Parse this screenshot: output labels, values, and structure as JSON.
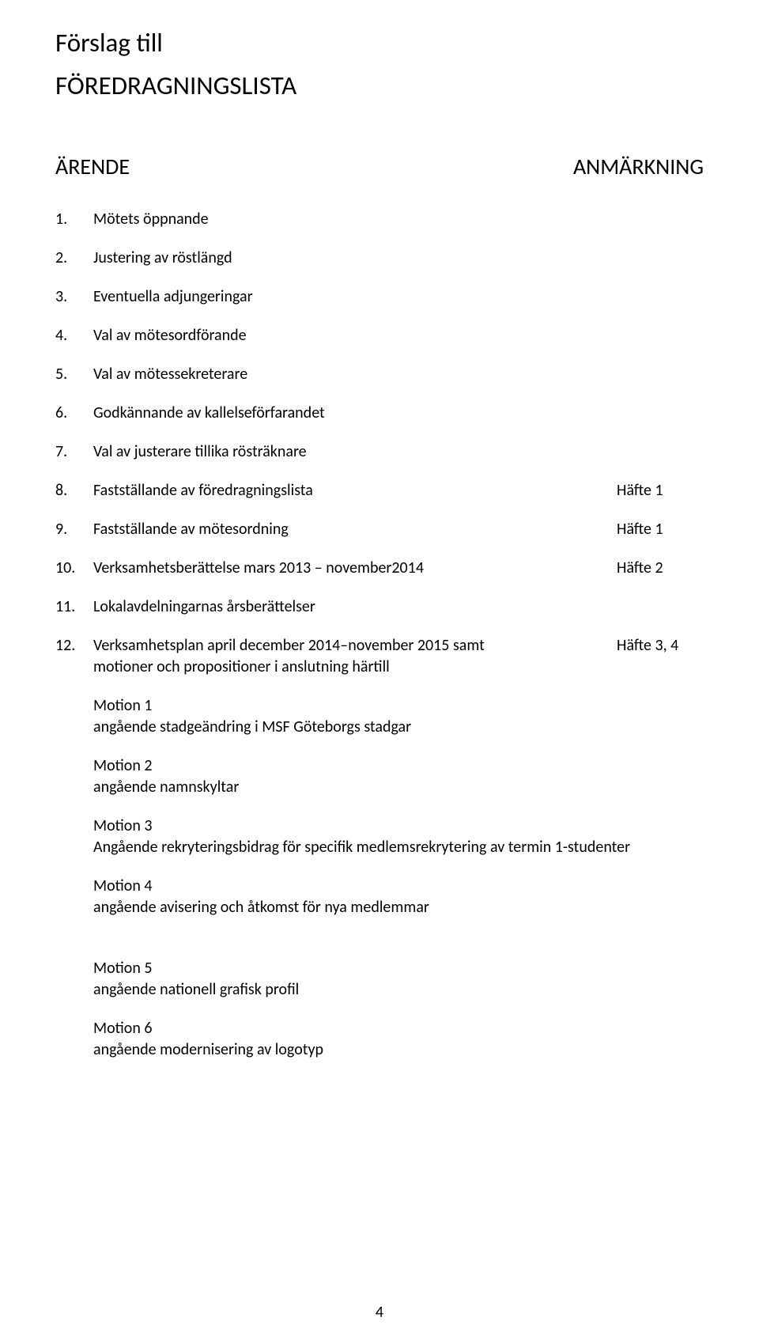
{
  "title_line1": "Förslag till",
  "title_line2": "FÖREDRAGNINGSLISTA",
  "header_left": "ÄRENDE",
  "header_right": "ANMÄRKNING",
  "items": [
    {
      "num": "1.",
      "text": "Mötets öppnande",
      "note": ""
    },
    {
      "num": "2.",
      "text": "Justering av röstlängd",
      "note": ""
    },
    {
      "num": "3.",
      "text": "Eventuella adjungeringar",
      "note": ""
    },
    {
      "num": "4.",
      "text": "Val av mötesordförande",
      "note": ""
    },
    {
      "num": "5.",
      "text": "Val av mötessekreterare",
      "note": ""
    },
    {
      "num": "6.",
      "text": "Godkännande av kallelseförfarandet",
      "note": ""
    },
    {
      "num": "7.",
      "text": "Val av justerare tillika rösträknare",
      "note": ""
    },
    {
      "num": "8.",
      "text": "Fastställande av föredragningslista",
      "note": "Häfte 1"
    },
    {
      "num": "9.",
      "text": "Fastställande av mötesordning",
      "note": "Häfte 1"
    },
    {
      "num": "10.",
      "text": "Verksamhetsberättelse mars 2013 – november2014",
      "note": "Häfte 2"
    },
    {
      "num": "11.",
      "text": "Lokalavdelningarnas årsberättelser",
      "note": ""
    }
  ],
  "item12": {
    "num": "12.",
    "line1": "Verksamhetsplan april december 2014–november 2015 samt",
    "line2": "motioner och propositioner i anslutning härtill",
    "note": "Häfte 3, 4"
  },
  "motions": [
    {
      "title": "Motion 1",
      "desc": "angående stadgeändring i MSF Göteborgs stadgar"
    },
    {
      "title": "Motion 2",
      "desc": "angående namnskyltar"
    },
    {
      "title": "Motion 3",
      "desc": "Angående rekryteringsbidrag för specifik medlemsrekrytering av termin 1-studenter"
    },
    {
      "title": "Motion 4",
      "desc": "angående avisering och åtkomst för nya medlemmar"
    }
  ],
  "motions2": [
    {
      "title": "Motion 5",
      "desc": "angående nationell grafisk profil"
    },
    {
      "title": "Motion 6",
      "desc": "angående modernisering av logotyp"
    }
  ],
  "page_number": "4"
}
